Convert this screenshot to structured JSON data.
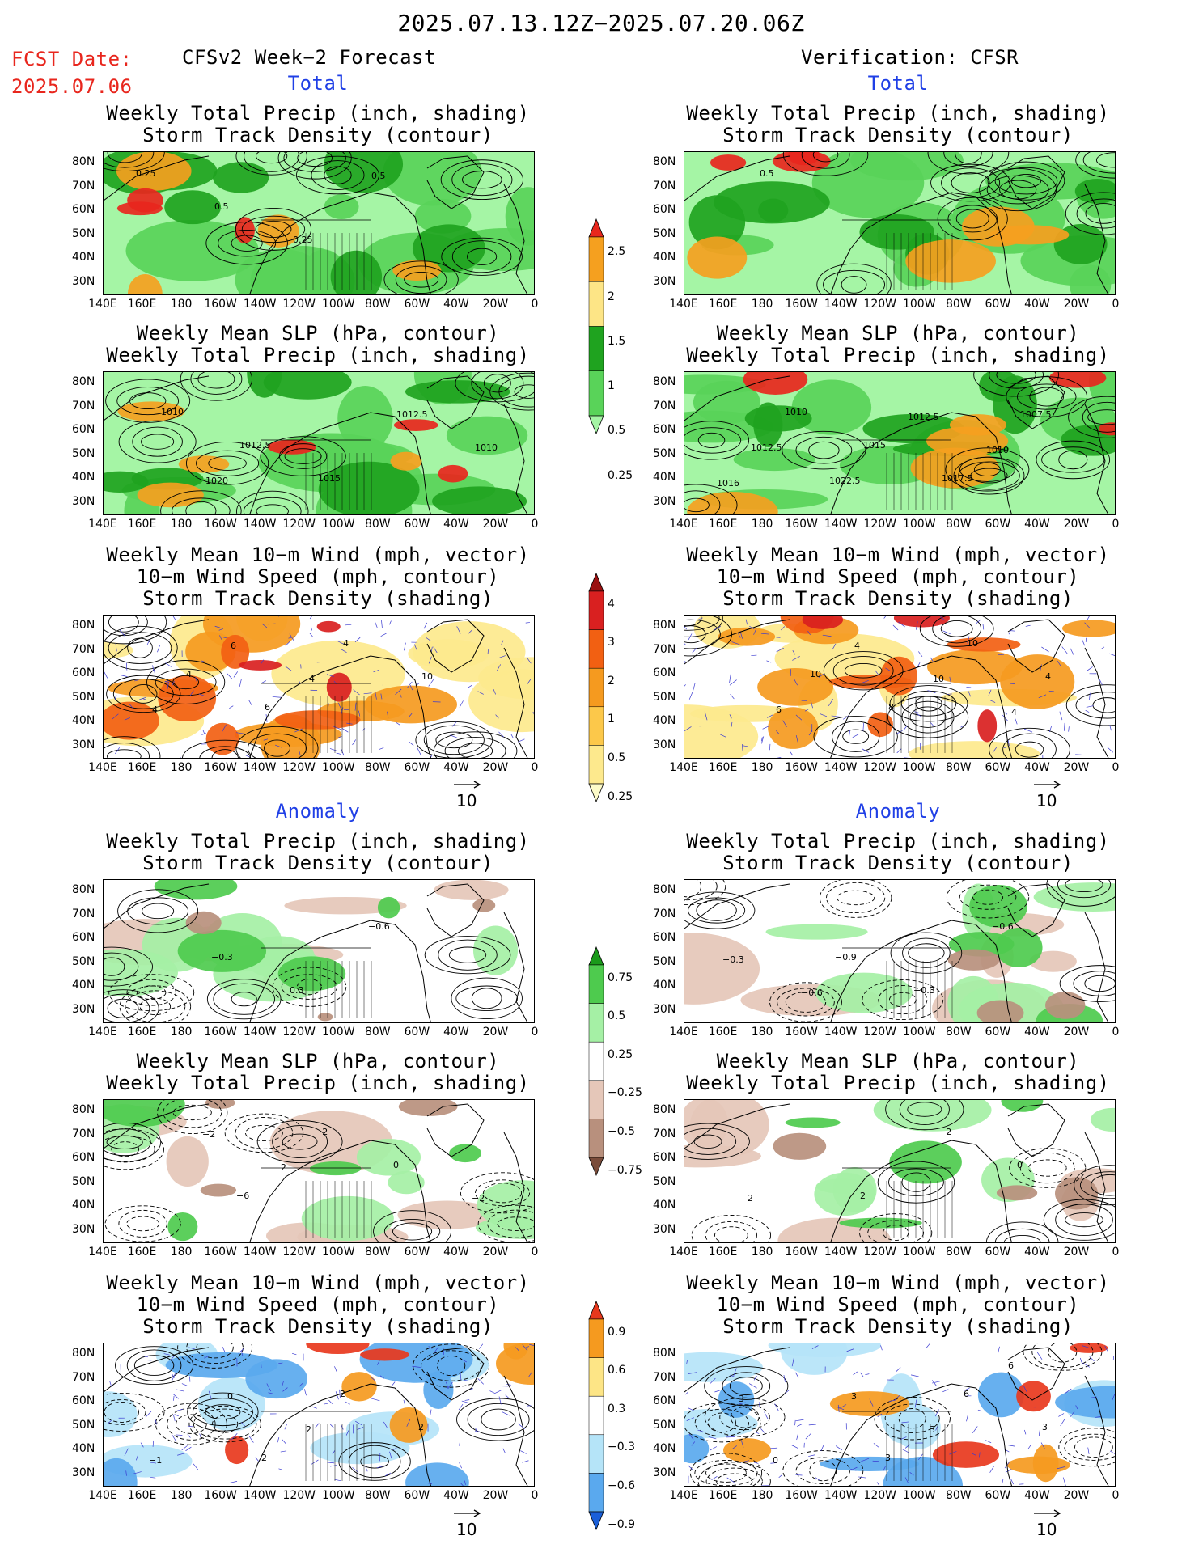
{
  "header": {
    "date_range": "2025.07.13.12Z−2025.07.20.06Z",
    "fcst_label": "FCST Date:",
    "fcst_date": "2025.07.06",
    "left_title": "CFSv2 Week−2 Forecast",
    "right_title": "Verification: CFSR"
  },
  "sections": {
    "total": "Total",
    "anomaly": "Anomaly"
  },
  "panel_titles": {
    "precip": [
      "Weekly Total Precip (inch, shading)",
      "Storm Track Density (contour)"
    ],
    "slp": [
      "Weekly Mean SLP (hPa, contour)",
      "Weekly Total Precip (inch, shading)"
    ],
    "wind": [
      "Weekly Mean 10−m Wind (mph, vector)",
      "10−m Wind Speed (mph, contour)",
      "Storm Track Density (shading)"
    ]
  },
  "axes": {
    "lat_labels": [
      "80N",
      "70N",
      "60N",
      "50N",
      "40N",
      "30N"
    ],
    "lon_labels": [
      "140E",
      "160E",
      "180",
      "160W",
      "140W",
      "120W",
      "100W",
      "80W",
      "60W",
      "40W",
      "20W",
      "0"
    ]
  },
  "vector_ref": "10",
  "colorbars": {
    "total_precip": {
      "labels": [
        "2.5",
        "2",
        "1.5",
        "1",
        "0.5",
        "0.25"
      ],
      "colors": [
        "#e8261d",
        "#f5a01f",
        "#fde586",
        "#1fa31f",
        "#59d359",
        "#a5f5a5"
      ]
    },
    "total_storm": {
      "labels": [
        "4",
        "3",
        "2",
        "1",
        "0.5",
        "0.25"
      ],
      "colors": [
        "#9a1010",
        "#d92020",
        "#f26012",
        "#f59a1f",
        "#fcc84a",
        "#fde98d",
        "#fdfbc8"
      ]
    },
    "anom_precip": {
      "labels": [
        "0.75",
        "0.5",
        "0.25",
        "−0.25",
        "−0.5",
        "−0.75"
      ],
      "colors": [
        "#1a9a1a",
        "#4ecb4e",
        "#a5f0a5",
        "#ffffff",
        "#e5c7b9",
        "#b8907d",
        "#7a4c3a"
      ]
    },
    "anom_storm": {
      "labels": [
        "0.9",
        "0.6",
        "0.3",
        "−0.3",
        "−0.6",
        "−0.9"
      ],
      "colors": [
        "#e8381d",
        "#f59a1f",
        "#fde586",
        "#ffffff",
        "#b5e4f8",
        "#5aa9ee",
        "#1a5fd9"
      ]
    }
  },
  "map_contour_labels": {
    "fc_total_precip": [
      "0.25",
      "0.5",
      "0.25",
      "0.5"
    ],
    "vr_total_precip": [
      "0.5"
    ],
    "fc_total_slp": [
      "1010",
      "1012.5",
      "1015",
      "1012.5",
      "1010",
      "1020"
    ],
    "vr_total_slp": [
      "1010",
      "1015",
      "1017.5",
      "1007.5",
      "1012.5",
      "1022.5",
      "1012.5",
      "1010",
      "1016"
    ],
    "fc_total_wind": [
      "4",
      "6",
      "4",
      "10",
      "4",
      "6",
      "4"
    ],
    "vr_total_wind": [
      "10",
      "8",
      "10",
      "4",
      "6",
      "4",
      "10",
      "4"
    ],
    "fc_anom_precip": [
      "−0.3",
      "0.3",
      "−0.6"
    ],
    "vr_anom_precip": [
      "−0.9",
      "−0.3",
      "−0.6",
      "−0.3",
      "−0.6"
    ],
    "fc_anom_slp": [
      "−6",
      "−2",
      "0",
      "−2",
      "−2",
      "2"
    ],
    "vr_anom_slp": [
      "2",
      "−2",
      "0",
      "2"
    ],
    "fc_anom_wind": [
      "2",
      "2",
      "2",
      "−1",
      "0",
      "2"
    ],
    "vr_anom_wind": [
      "3",
      "6",
      "3",
      "0",
      "3",
      "3",
      "6",
      "3"
    ]
  }
}
